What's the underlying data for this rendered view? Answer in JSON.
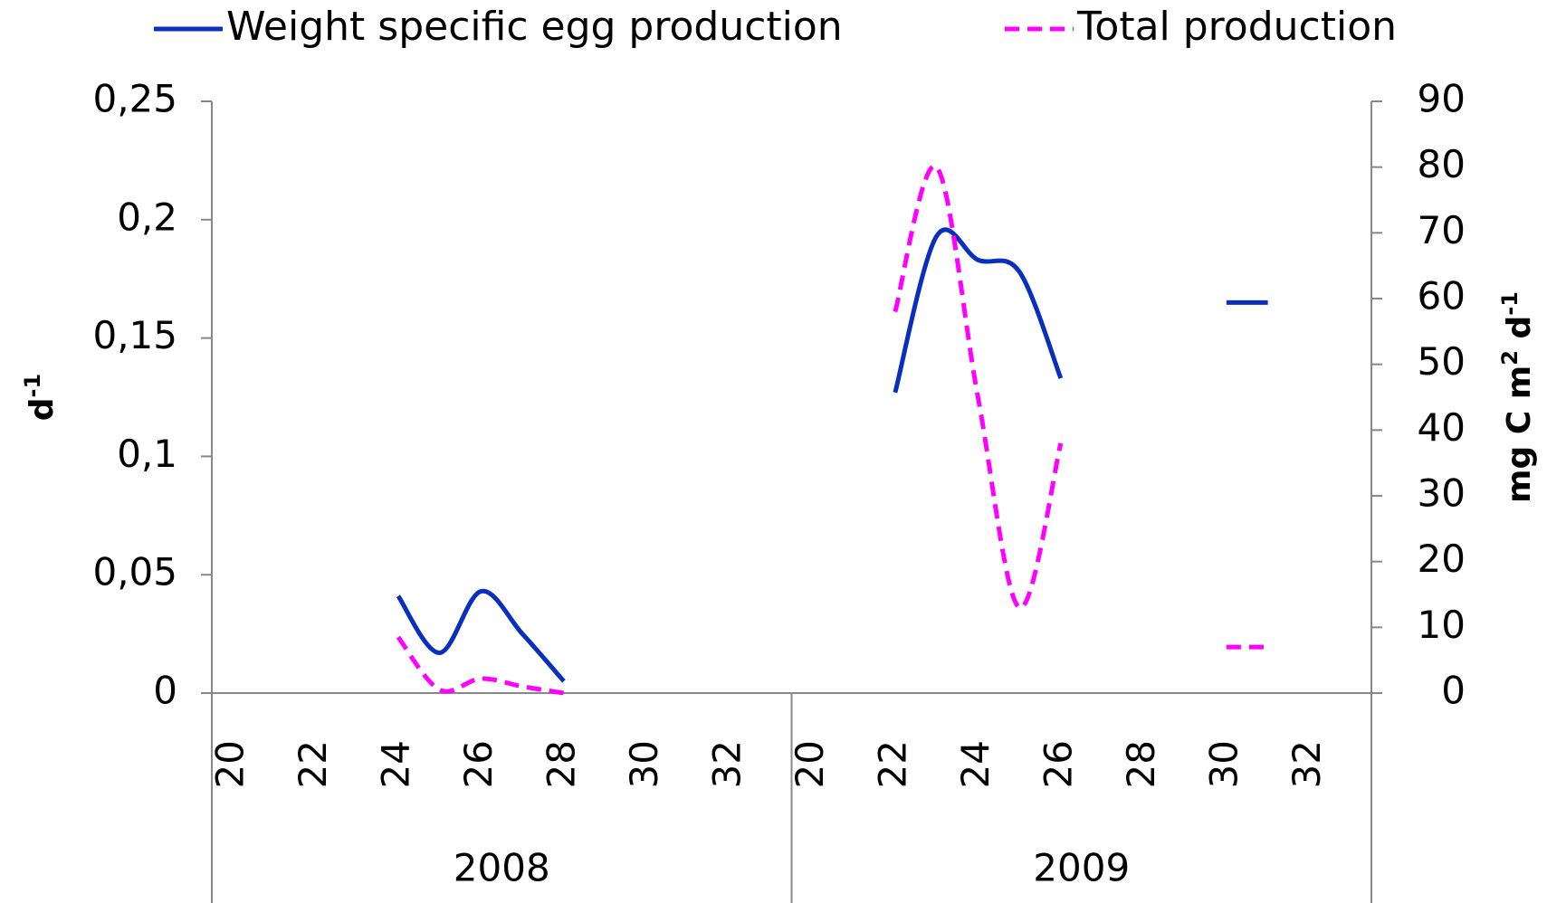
{
  "chart_data": {
    "type": "line",
    "categories": [
      "20",
      null,
      "22",
      null,
      "24",
      null,
      "26",
      null,
      "28",
      null,
      "30",
      null,
      "32",
      null,
      "20",
      null,
      "22",
      null,
      "24",
      null,
      "26",
      null,
      "28",
      null,
      "30",
      null,
      "32",
      null
    ],
    "category_groups": [
      "2008",
      "2009"
    ],
    "y_label": [
      "d",
      "-1"
    ],
    "y2_label": [
      "mg C m",
      "2",
      " d",
      "-1"
    ],
    "ylim": [
      0,
      0.25
    ],
    "yticks": [
      0,
      {
        "value": 0.05,
        "label": "0,05"
      },
      {
        "value": 0.1,
        "label": "0,1"
      },
      {
        "value": 0.15,
        "label": "0,15"
      },
      {
        "value": 0.2,
        "label": "0,2"
      },
      {
        "value": 0.25,
        "label": "0,25"
      }
    ],
    "y2lim": [
      0,
      90
    ],
    "y2ticks": [
      0,
      10,
      20,
      30,
      40,
      50,
      60,
      70,
      80,
      90
    ],
    "series": [
      {
        "name": "Weight specific egg production",
        "color": "#0a2fbf",
        "dash": "solid",
        "values": [
          null,
          null,
          null,
          null,
          0.041,
          0.017,
          0.043,
          0.025,
          0.005,
          null,
          null,
          null,
          null,
          null,
          null,
          null,
          0.127,
          0.193,
          0.183,
          0.178,
          0.133,
          null,
          null,
          null,
          0.165,
          0.165,
          null,
          null
        ]
      },
      {
        "name": "Total production",
        "color": "#ff00ff",
        "dash": "dashed",
        "axis": "y2",
        "values": [
          null,
          null,
          null,
          null,
          8.5,
          0.5,
          2.2,
          1,
          0,
          null,
          null,
          null,
          null,
          null,
          null,
          null,
          58,
          80,
          45,
          13,
          38,
          null,
          null,
          null,
          7,
          7,
          null,
          null
        ]
      }
    ]
  }
}
